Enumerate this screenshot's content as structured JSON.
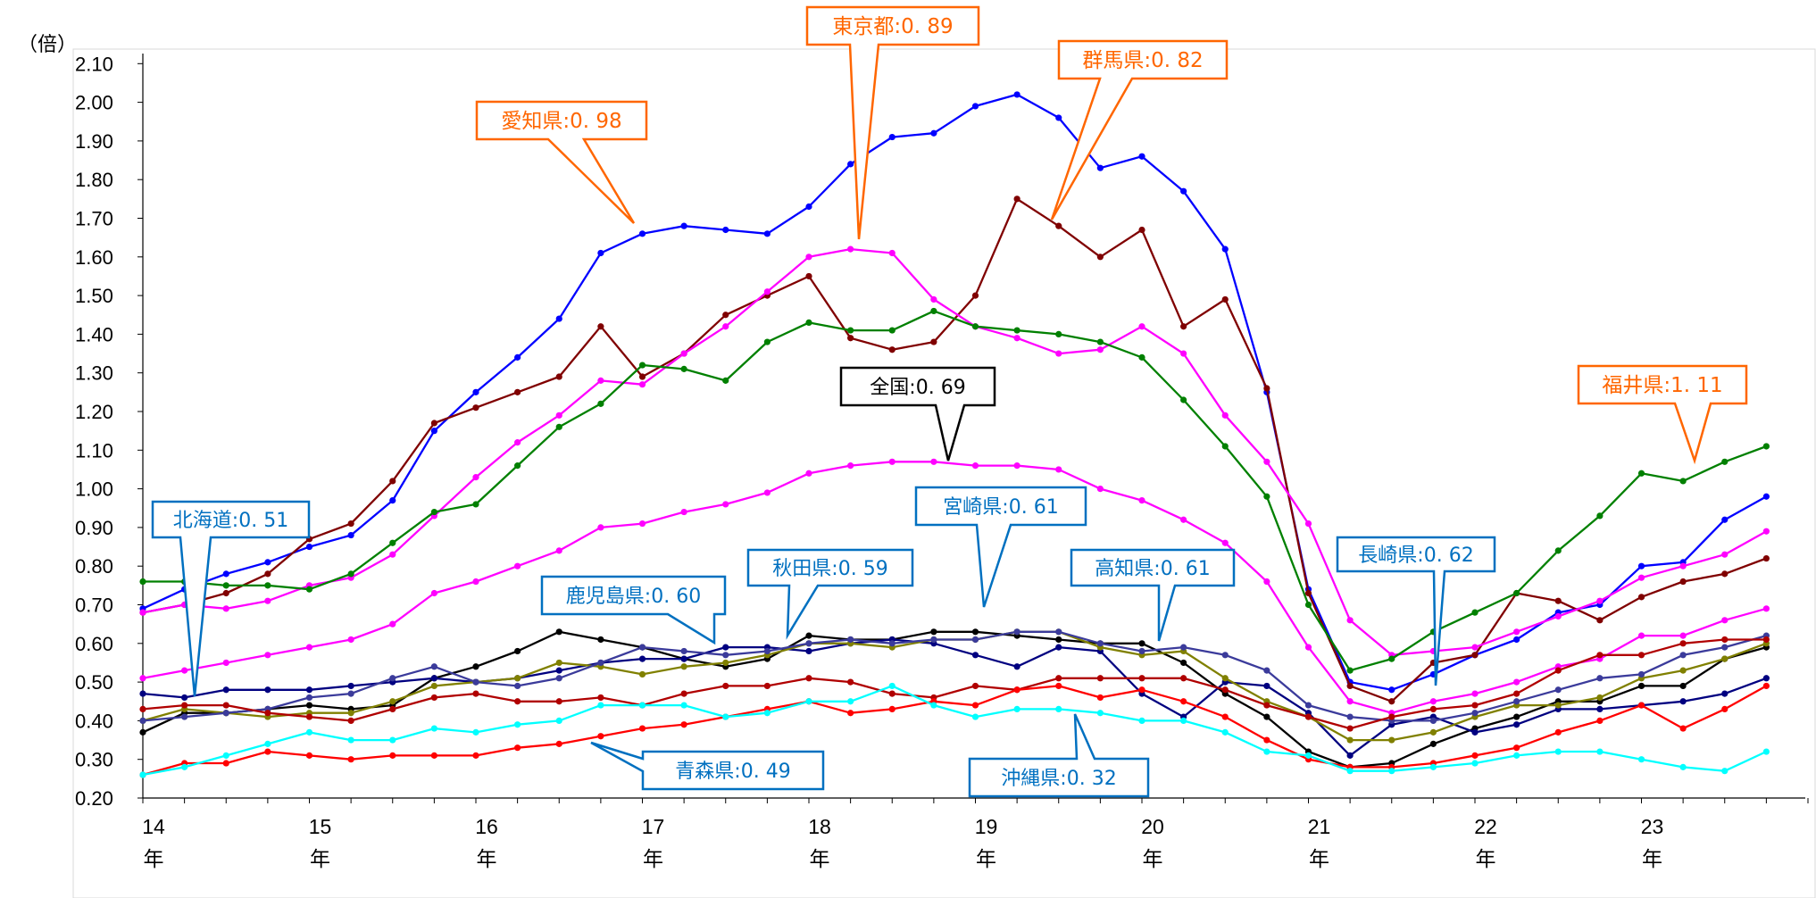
{
  "chart_data": {
    "type": "line",
    "y_unit": "（倍）",
    "ylim": [
      0.2,
      2.1
    ],
    "y_ticks": [
      "2.10",
      "2.00",
      "1.90",
      "1.80",
      "1.70",
      "1.60",
      "1.50",
      "1.40",
      "1.30",
      "1.20",
      "1.10",
      "1.00",
      "0.90",
      "0.80",
      "0.70",
      "0.60",
      "0.50",
      "0.40",
      "0.30",
      "0.20"
    ],
    "x_start": 14,
    "points_per_year": 4,
    "x_ticks": [
      {
        "year": "14",
        "suffix": "年"
      },
      {
        "year": "15",
        "suffix": "年"
      },
      {
        "year": "16",
        "suffix": "年"
      },
      {
        "year": "17",
        "suffix": "年"
      },
      {
        "year": "18",
        "suffix": "年"
      },
      {
        "year": "19",
        "suffix": "年"
      },
      {
        "year": "20",
        "suffix": "年"
      },
      {
        "year": "21",
        "suffix": "年"
      },
      {
        "year": "22",
        "suffix": "年"
      },
      {
        "year": "23",
        "suffix": "年"
      }
    ],
    "grid": false,
    "series": [
      {
        "color": "#0000ff",
        "values": [
          0.69,
          0.74,
          0.78,
          0.81,
          0.85,
          0.88,
          0.97,
          1.15,
          1.25,
          1.34,
          1.44,
          1.61,
          1.66,
          1.68,
          1.67,
          1.66,
          1.73,
          1.84,
          1.91,
          1.92,
          1.99,
          2.02,
          1.96,
          1.83,
          1.86,
          1.77,
          1.62,
          1.25,
          0.74,
          0.5,
          0.48,
          0.52,
          0.57,
          0.61,
          0.68,
          0.7,
          0.8,
          0.81,
          0.92,
          0.98
        ]
      },
      {
        "color": "#800000",
        "values": [
          0.68,
          0.7,
          0.73,
          0.78,
          0.87,
          0.91,
          1.02,
          1.17,
          1.21,
          1.25,
          1.29,
          1.42,
          1.29,
          1.35,
          1.45,
          1.5,
          1.55,
          1.39,
          1.36,
          1.38,
          1.5,
          1.75,
          1.68,
          1.6,
          1.67,
          1.42,
          1.49,
          1.26,
          0.73,
          0.49,
          0.45,
          0.55,
          0.57,
          0.73,
          0.71,
          0.66,
          0.72,
          0.76,
          0.78,
          0.82
        ]
      },
      {
        "color": "#ff00ff",
        "values": [
          0.68,
          0.7,
          0.69,
          0.71,
          0.75,
          0.77,
          0.83,
          0.93,
          1.03,
          1.12,
          1.19,
          1.28,
          1.27,
          1.35,
          1.42,
          1.51,
          1.6,
          1.62,
          1.61,
          1.49,
          1.42,
          1.39,
          1.35,
          1.36,
          1.42,
          1.35,
          1.19,
          1.07,
          0.91,
          0.66,
          0.57,
          0.58,
          0.59,
          0.63,
          0.67,
          0.71,
          0.77,
          0.8,
          0.83,
          0.89
        ]
      },
      {
        "color": "#008000",
        "values": [
          0.76,
          0.76,
          0.75,
          0.75,
          0.74,
          0.78,
          0.86,
          0.94,
          0.96,
          1.06,
          1.16,
          1.22,
          1.32,
          1.31,
          1.28,
          1.38,
          1.43,
          1.41,
          1.41,
          1.46,
          1.42,
          1.41,
          1.4,
          1.38,
          1.34,
          1.23,
          1.11,
          0.98,
          0.7,
          0.53,
          0.56,
          0.63,
          0.68,
          0.73,
          0.84,
          0.93,
          1.04,
          1.02,
          1.07,
          1.11
        ]
      },
      {
        "color": "#ff00ff",
        "values": [
          0.51,
          0.53,
          0.55,
          0.57,
          0.59,
          0.61,
          0.65,
          0.73,
          0.76,
          0.8,
          0.84,
          0.9,
          0.91,
          0.94,
          0.96,
          0.99,
          1.04,
          1.06,
          1.07,
          1.07,
          1.06,
          1.06,
          1.05,
          1.0,
          0.97,
          0.92,
          0.86,
          0.76,
          0.59,
          0.45,
          0.42,
          0.45,
          0.47,
          0.5,
          0.54,
          0.56,
          0.62,
          0.62,
          0.66,
          0.69
        ]
      },
      {
        "color": "#000000",
        "values": [
          0.37,
          0.42,
          0.42,
          0.43,
          0.44,
          0.43,
          0.44,
          0.51,
          0.54,
          0.58,
          0.63,
          0.61,
          0.59,
          0.56,
          0.54,
          0.56,
          0.62,
          0.61,
          0.61,
          0.63,
          0.63,
          0.62,
          0.61,
          0.6,
          0.6,
          0.55,
          0.47,
          0.41,
          0.32,
          0.28,
          0.29,
          0.34,
          0.38,
          0.41,
          0.45,
          0.45,
          0.49,
          0.49,
          0.56,
          0.59
        ]
      },
      {
        "color": "#000080",
        "values": [
          0.47,
          0.46,
          0.48,
          0.48,
          0.48,
          0.49,
          0.5,
          0.51,
          0.5,
          0.51,
          0.53,
          0.55,
          0.56,
          0.56,
          0.59,
          0.59,
          0.58,
          0.6,
          0.61,
          0.6,
          0.57,
          0.54,
          0.59,
          0.58,
          0.47,
          0.41,
          0.5,
          0.49,
          0.42,
          0.31,
          0.39,
          0.41,
          0.37,
          0.39,
          0.43,
          0.43,
          0.44,
          0.45,
          0.47,
          0.51
        ]
      },
      {
        "color": "#808000",
        "values": [
          0.4,
          0.43,
          0.42,
          0.41,
          0.42,
          0.42,
          0.45,
          0.49,
          0.5,
          0.51,
          0.55,
          0.54,
          0.52,
          0.54,
          0.55,
          0.57,
          0.6,
          0.6,
          0.59,
          0.61,
          0.61,
          0.63,
          0.63,
          0.59,
          0.57,
          0.58,
          0.51,
          0.45,
          0.41,
          0.35,
          0.35,
          0.37,
          0.41,
          0.44,
          0.44,
          0.46,
          0.51,
          0.53,
          0.56,
          0.6
        ]
      },
      {
        "color": "#3b3b9b",
        "values": [
          0.4,
          0.41,
          0.42,
          0.43,
          0.46,
          0.47,
          0.51,
          0.54,
          0.5,
          0.49,
          0.51,
          0.55,
          0.59,
          0.58,
          0.57,
          0.58,
          0.6,
          0.61,
          0.6,
          0.61,
          0.61,
          0.63,
          0.63,
          0.6,
          0.58,
          0.59,
          0.57,
          0.53,
          0.44,
          0.41,
          0.4,
          0.4,
          0.42,
          0.45,
          0.48,
          0.51,
          0.52,
          0.57,
          0.59,
          0.62
        ]
      },
      {
        "color": "#b00000",
        "values": [
          0.43,
          0.44,
          0.44,
          0.42,
          0.41,
          0.4,
          0.43,
          0.46,
          0.47,
          0.45,
          0.45,
          0.46,
          0.44,
          0.47,
          0.49,
          0.49,
          0.51,
          0.5,
          0.47,
          0.46,
          0.49,
          0.48,
          0.51,
          0.51,
          0.51,
          0.51,
          0.48,
          0.44,
          0.41,
          0.38,
          0.41,
          0.43,
          0.44,
          0.47,
          0.53,
          0.57,
          0.57,
          0.6,
          0.61,
          0.61
        ]
      },
      {
        "color": "#ff0000",
        "values": [
          0.26,
          0.29,
          0.29,
          0.32,
          0.31,
          0.3,
          0.31,
          0.31,
          0.31,
          0.33,
          0.34,
          0.36,
          0.38,
          0.39,
          0.41,
          0.43,
          0.45,
          0.42,
          0.43,
          0.45,
          0.44,
          0.48,
          0.49,
          0.46,
          0.48,
          0.45,
          0.41,
          0.35,
          0.3,
          0.28,
          0.28,
          0.29,
          0.31,
          0.33,
          0.37,
          0.4,
          0.44,
          0.38,
          0.43,
          0.49
        ]
      },
      {
        "color": "#00ffff",
        "values": [
          0.26,
          0.28,
          0.31,
          0.34,
          0.37,
          0.35,
          0.35,
          0.38,
          0.37,
          0.39,
          0.4,
          0.44,
          0.44,
          0.44,
          0.41,
          0.42,
          0.45,
          0.45,
          0.49,
          0.44,
          0.41,
          0.43,
          0.43,
          0.42,
          0.4,
          0.4,
          0.37,
          0.32,
          0.31,
          0.27,
          0.27,
          0.28,
          0.29,
          0.31,
          0.32,
          0.32,
          0.3,
          0.28,
          0.27,
          0.32
        ]
      }
    ],
    "annotations": [
      {
        "text": "東京都:0. 89",
        "color": "#ff6600",
        "bg": "#ffffff"
      },
      {
        "text": "群馬県:0. 82",
        "color": "#ff6600",
        "bg": "#ffffff"
      },
      {
        "text": "愛知県:0. 98",
        "color": "#ff6600",
        "bg": "#ffffff"
      },
      {
        "text": "福井県:1. 11",
        "color": "#ff6600",
        "bg": "#ffffff"
      },
      {
        "text": "全国:0. 69",
        "color": "#000000",
        "bg": "#ffffff"
      },
      {
        "text": "北海道:0. 51",
        "color": "#0070c0",
        "bg": "#ffffff"
      },
      {
        "text": "宮崎県:0. 61",
        "color": "#0070c0",
        "bg": "#ffffff"
      },
      {
        "text": "秋田県:0. 59",
        "color": "#0070c0",
        "bg": "#ffffff"
      },
      {
        "text": "高知県:0. 61",
        "color": "#0070c0",
        "bg": "#ffffff"
      },
      {
        "text": "鹿児島県:0. 60",
        "color": "#0070c0",
        "bg": "#ffffff"
      },
      {
        "text": "長崎県:0. 62",
        "color": "#0070c0",
        "bg": "#ffffff"
      },
      {
        "text": "青森県:0. 49",
        "color": "#0070c0",
        "bg": "#ffffff"
      },
      {
        "text": "沖縄県:0. 32",
        "color": "#0070c0",
        "bg": "#ffffff"
      }
    ]
  }
}
